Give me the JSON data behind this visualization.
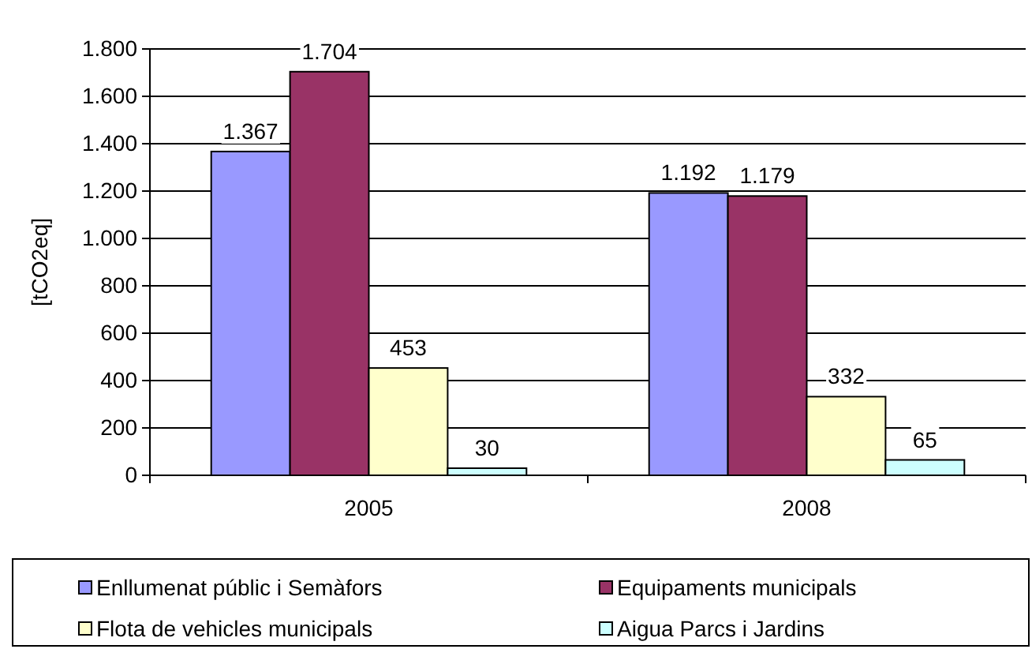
{
  "chart_data": {
    "type": "bar",
    "ylabel": "[tCO2eq]",
    "categories": [
      "2005",
      "2008"
    ],
    "series": [
      {
        "name": "Enllumenat públic i Semàfors",
        "color": "#9999ff",
        "values": [
          1367,
          1192
        ],
        "value_labels": [
          "1.367",
          "1.192"
        ]
      },
      {
        "name": "Equipaments municipals",
        "color": "#993366",
        "values": [
          1704,
          1179
        ],
        "value_labels": [
          "1.704",
          "1.179"
        ]
      },
      {
        "name": "Flota de vehicles municipals",
        "color": "#ffffcc",
        "values": [
          453,
          332
        ],
        "value_labels": [
          "453",
          "332"
        ]
      },
      {
        "name": "Aigua Parcs i Jardins",
        "color": "#ccffff",
        "values": [
          30,
          65
        ],
        "value_labels": [
          "30",
          "65"
        ]
      }
    ],
    "ylim": [
      0,
      1800
    ],
    "yticks": [
      0,
      {
        "value": 200,
        "label": "200"
      },
      {
        "value": 400,
        "label": "400"
      },
      {
        "value": 600,
        "label": "600"
      },
      {
        "value": 800,
        "label": "800"
      },
      {
        "value": 1000,
        "label": "1.000"
      },
      {
        "value": 1200,
        "label": "1.200"
      },
      {
        "value": 1400,
        "label": "1.400"
      },
      {
        "value": 1600,
        "label": "1.600"
      },
      {
        "value": 1800,
        "label": "1.800"
      }
    ],
    "grid": "y",
    "legend": "bottom"
  }
}
